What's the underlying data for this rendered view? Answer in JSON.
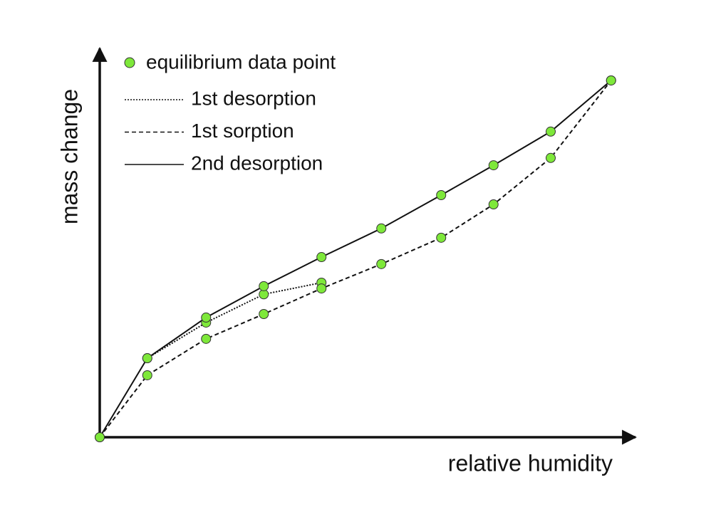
{
  "chart_data": {
    "type": "line",
    "x_label": "relative humidity",
    "y_label": "mass change",
    "marker_label": "equilibrium data point",
    "marker_color": "#7ee83a",
    "x": [
      0,
      8.9,
      19.9,
      30.7,
      41.5,
      52.7,
      63.9,
      73.7,
      84.4,
      95.7
    ],
    "xlim": [
      0,
      100
    ],
    "ylim": [
      0,
      100
    ],
    "series": [
      {
        "name": "1st desorption",
        "color": "#111111",
        "dash": "dotted",
        "values": [
          null,
          20.4,
          29.6,
          36.9,
          39.9,
          null,
          null,
          null,
          null,
          null
        ]
      },
      {
        "name": "1st sorption",
        "color": "#111111",
        "dash": "dashed",
        "values": [
          0,
          16.0,
          25.4,
          31.8,
          38.4,
          44.7,
          51.5,
          60.1,
          72.1,
          92.1
        ]
      },
      {
        "name": "2nd desorption",
        "color": "#111111",
        "dash": "solid",
        "values": [
          0,
          20.4,
          30.9,
          39.0,
          46.5,
          53.9,
          62.5,
          70.2,
          78.9,
          92.1
        ]
      }
    ]
  }
}
